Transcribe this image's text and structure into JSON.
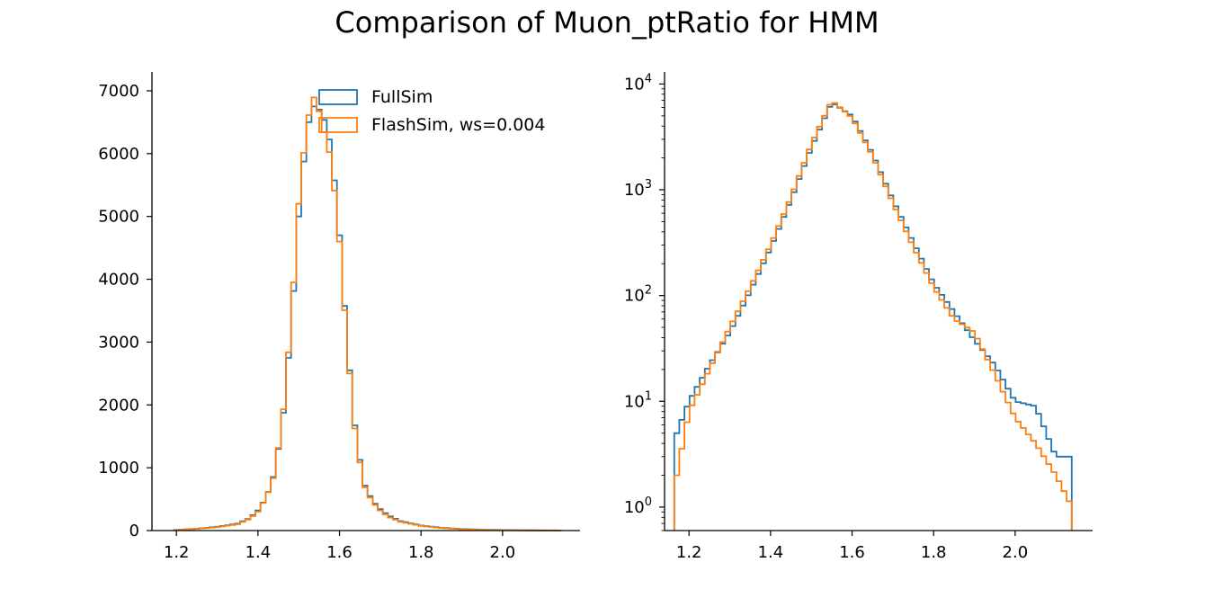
{
  "title": "Comparison of Muon_ptRatio for HMM",
  "colors": {
    "fullsim": "#1f77b4",
    "flashsim": "#ff7f0e",
    "axis": "#000000"
  },
  "chart_data": [
    {
      "type": "line",
      "scale": "linear",
      "xlim": [
        1.14,
        2.19
      ],
      "ylim": [
        0,
        7300
      ],
      "xticks": [
        1.2,
        1.4,
        1.6,
        1.8,
        2.0
      ],
      "xtick_labels": [
        "1.2",
        "1.4",
        "1.6",
        "1.8",
        "2.0"
      ],
      "yticks": [
        0,
        1000,
        2000,
        3000,
        4000,
        5000,
        6000,
        7000
      ],
      "ytick_labels": [
        "0",
        "1000",
        "2000",
        "3000",
        "4000",
        "5000",
        "6000",
        "7000"
      ],
      "legend_position": "top-center",
      "grid": false,
      "x": [
        1.2,
        1.25,
        1.3,
        1.35,
        1.38,
        1.4,
        1.42,
        1.44,
        1.46,
        1.48,
        1.5,
        1.52,
        1.54,
        1.56,
        1.58,
        1.6,
        1.62,
        1.64,
        1.66,
        1.68,
        1.7,
        1.72,
        1.75,
        1.8,
        1.85,
        1.9,
        1.95,
        2.0,
        2.05,
        2.1,
        2.14
      ],
      "series": [
        {
          "name": "FullSim",
          "color_key": "fullsim",
          "values": [
            10,
            30,
            60,
            110,
            200,
            320,
            520,
            900,
            1700,
            3100,
            5000,
            6400,
            6800,
            6600,
            6100,
            4700,
            2900,
            1500,
            750,
            480,
            340,
            240,
            150,
            80,
            45,
            25,
            15,
            8,
            5,
            3,
            2
          ]
        },
        {
          "name": "FlashSim, ws=0.004",
          "color_key": "flashsim",
          "values": [
            8,
            28,
            55,
            100,
            190,
            300,
            520,
            880,
            1750,
            3200,
            5200,
            6500,
            6950,
            6400,
            5900,
            4600,
            2850,
            1450,
            720,
            460,
            320,
            220,
            140,
            75,
            40,
            22,
            12,
            6,
            4,
            2,
            1
          ]
        }
      ]
    },
    {
      "type": "line",
      "scale": "log",
      "xlim": [
        1.14,
        2.19
      ],
      "ylim": [
        0.6,
        13000
      ],
      "xticks": [
        1.2,
        1.4,
        1.6,
        1.8,
        2.0
      ],
      "xtick_labels": [
        "1.2",
        "1.4",
        "1.6",
        "1.8",
        "2.0"
      ],
      "yticks": [
        1,
        10,
        100,
        1000,
        10000
      ],
      "ytick_base": "10",
      "ytick_exponents": [
        "0",
        "1",
        "2",
        "3",
        "4"
      ],
      "grid": false,
      "x": [
        1.17,
        1.2,
        1.25,
        1.3,
        1.35,
        1.4,
        1.45,
        1.5,
        1.55,
        1.6,
        1.65,
        1.7,
        1.75,
        1.8,
        1.85,
        1.9,
        1.95,
        2.0,
        2.05,
        2.1,
        2.14
      ],
      "series": [
        {
          "name": "FullSim",
          "color_key": "fullsim",
          "values": [
            5,
            10,
            22,
            45,
            110,
            280,
            800,
            2500,
            6700,
            5000,
            2200,
            800,
            320,
            130,
            70,
            38,
            22,
            10,
            9,
            3,
            3
          ]
        },
        {
          "name": "FlashSim, ws=0.004",
          "color_key": "flashsim",
          "values": [
            2,
            8,
            20,
            50,
            120,
            300,
            850,
            2700,
            7000,
            4800,
            2100,
            750,
            290,
            120,
            60,
            45,
            18,
            7,
            4,
            2,
            1
          ]
        }
      ]
    }
  ]
}
